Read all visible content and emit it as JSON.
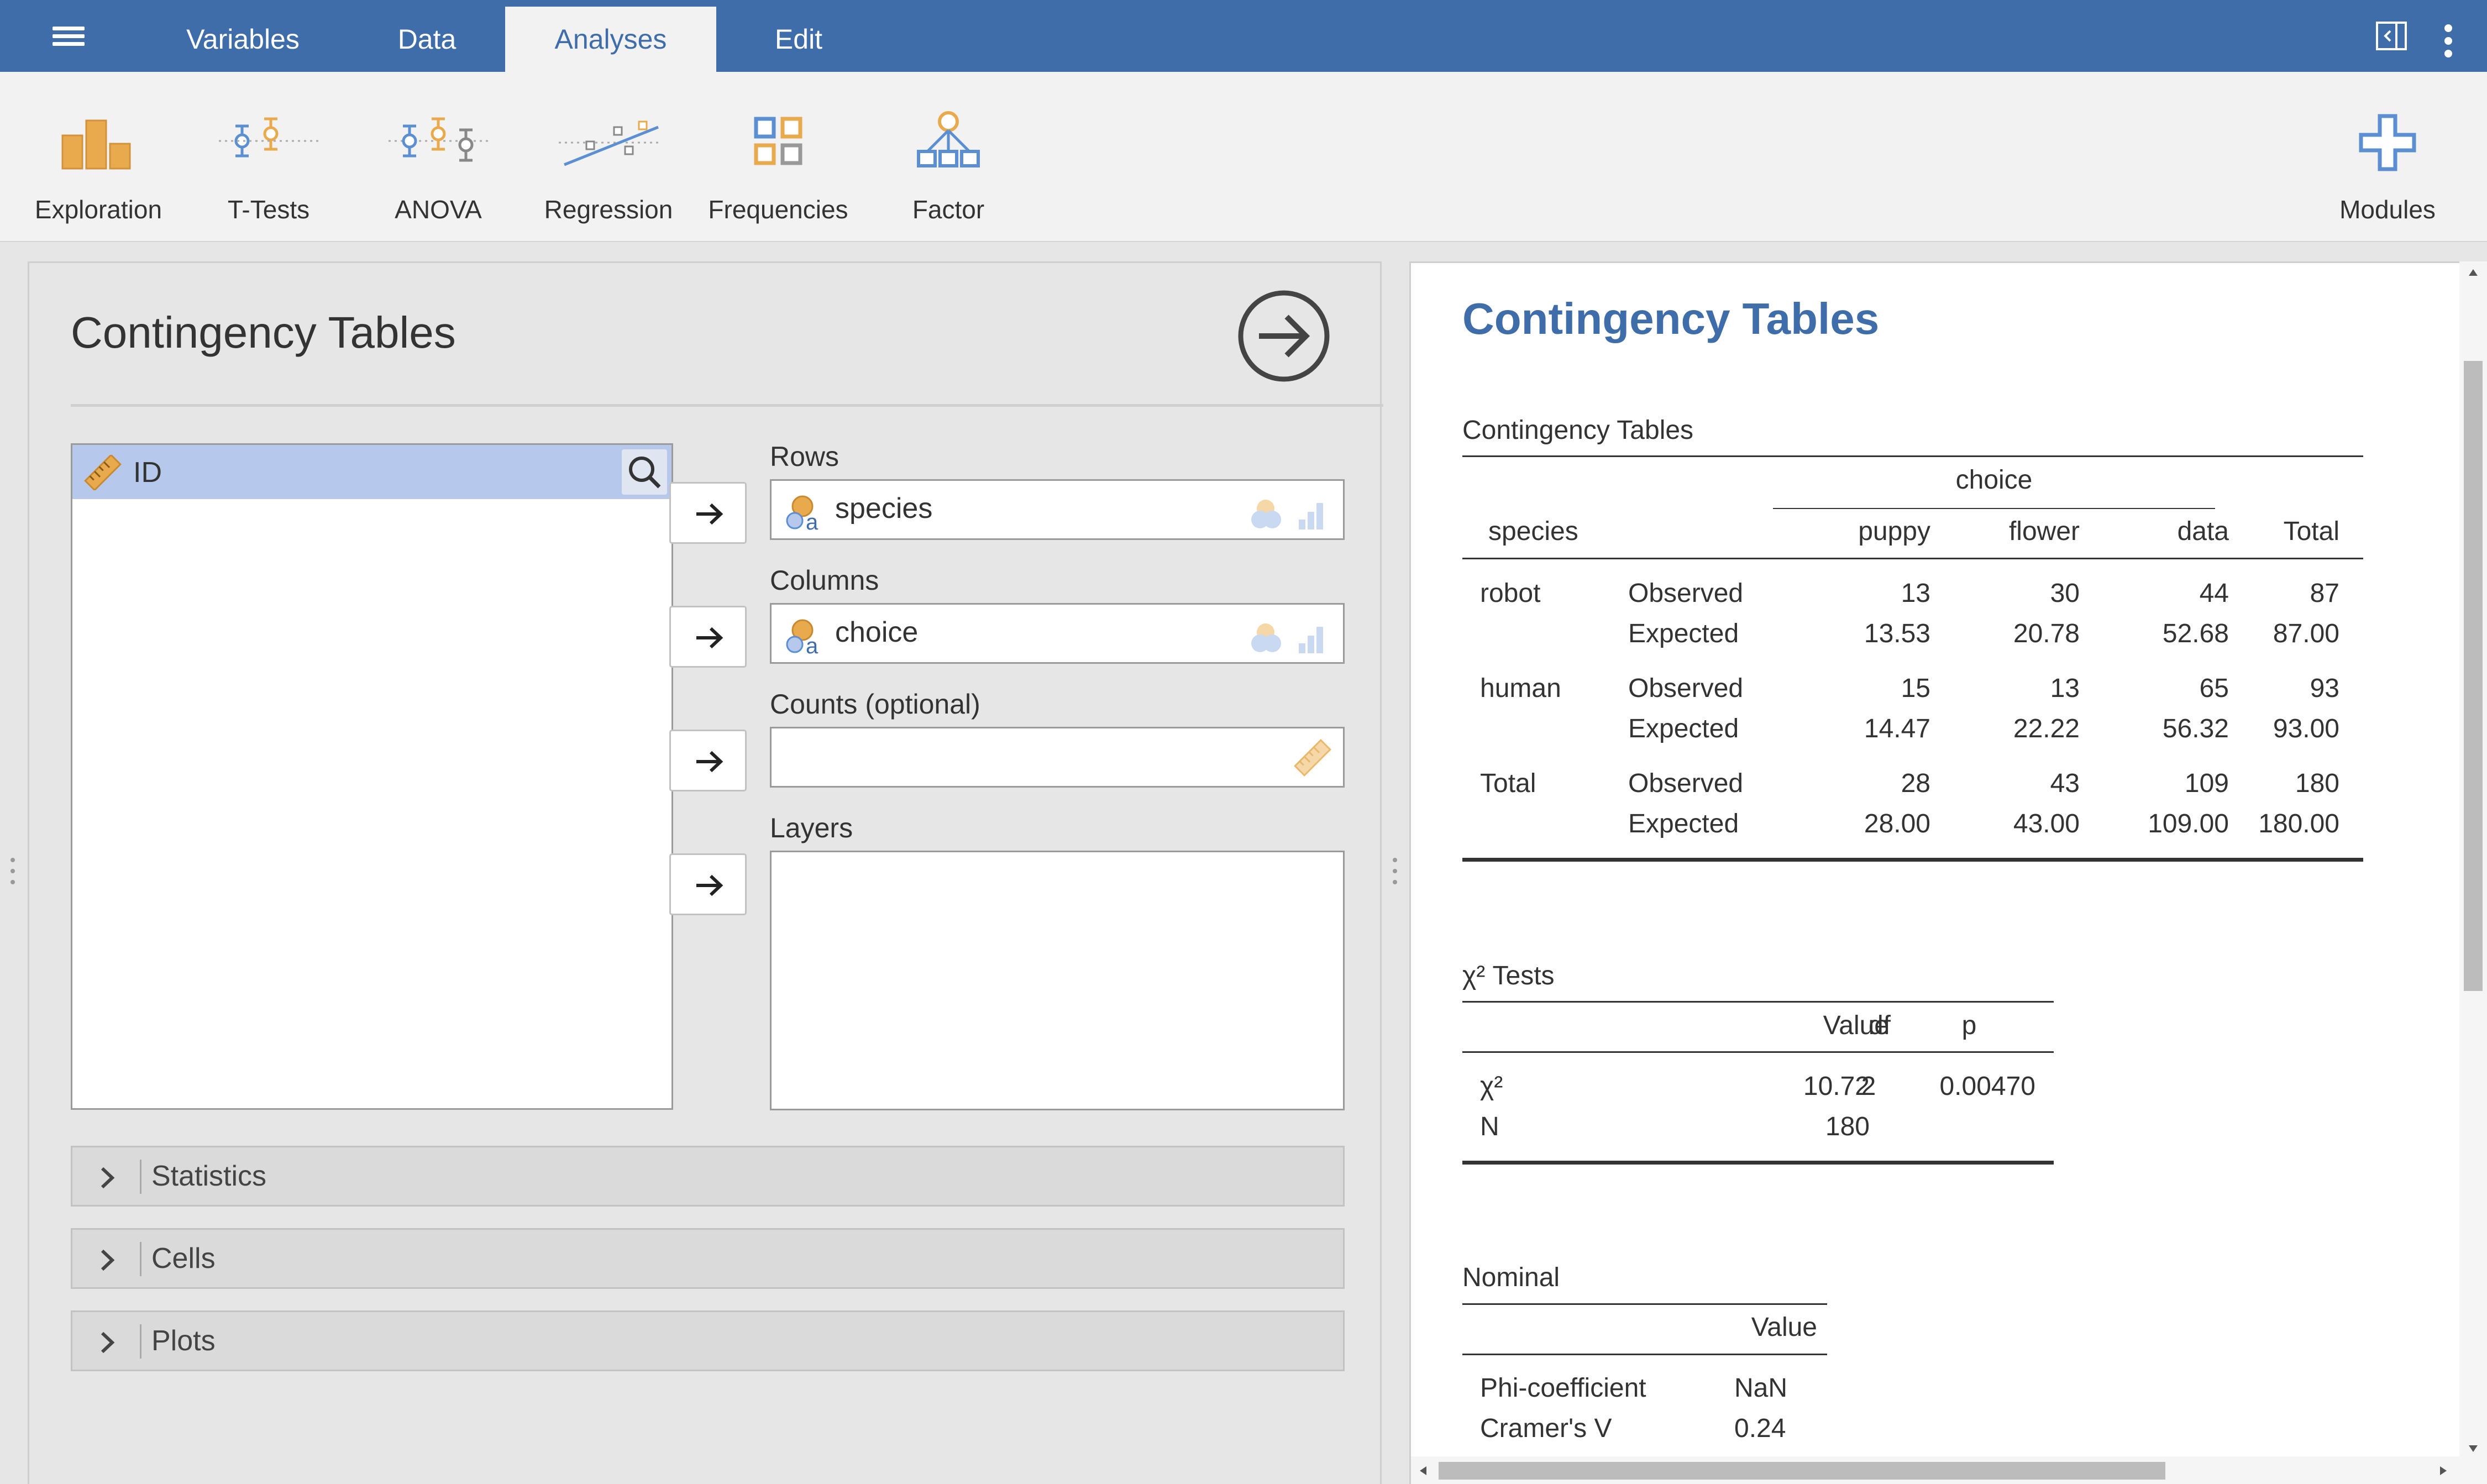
{
  "topbar": {
    "tabs": [
      {
        "label": "Variables",
        "active": false
      },
      {
        "label": "Data",
        "active": false
      },
      {
        "label": "Analyses",
        "active": true
      },
      {
        "label": "Edit",
        "active": false
      }
    ],
    "icons": [
      "hamburger-menu-icon",
      "split-view-icon",
      "kebab-menu-icon"
    ]
  },
  "ribbon": {
    "items": [
      {
        "label": "Exploration",
        "icon": "exploration-icon"
      },
      {
        "label": "T-Tests",
        "icon": "t-tests-icon"
      },
      {
        "label": "ANOVA",
        "icon": "anova-icon"
      },
      {
        "label": "Regression",
        "icon": "regression-icon"
      },
      {
        "label": "Frequencies",
        "icon": "frequencies-icon"
      },
      {
        "label": "Factor",
        "icon": "factor-icon"
      }
    ],
    "modules": {
      "label": "Modules",
      "icon": "plus-icon"
    }
  },
  "options": {
    "title": "Contingency Tables",
    "variables": [
      {
        "name": "ID",
        "type": "continuous"
      }
    ],
    "rows": {
      "label": "Rows",
      "value": "species"
    },
    "columns": {
      "label": "Columns",
      "value": "choice"
    },
    "counts": {
      "label": "Counts (optional)",
      "value": ""
    },
    "layers": {
      "label": "Layers"
    },
    "sections": [
      "Statistics",
      "Cells",
      "Plots"
    ]
  },
  "results": {
    "title": "Contingency Tables",
    "contingency": {
      "title": "Contingency Tables",
      "group_header": "choice",
      "row_var": "species",
      "columns": [
        "puppy",
        "flower",
        "data",
        "Total"
      ],
      "rows": [
        {
          "group": "robot",
          "type": "Observed",
          "values": [
            "13",
            "30",
            "44",
            "87"
          ]
        },
        {
          "group": "",
          "type": "Expected",
          "values": [
            "13.53",
            "20.78",
            "52.68",
            "87.00"
          ]
        },
        {
          "group": "human",
          "type": "Observed",
          "values": [
            "15",
            "13",
            "65",
            "93"
          ]
        },
        {
          "group": "",
          "type": "Expected",
          "values": [
            "14.47",
            "22.22",
            "56.32",
            "93.00"
          ]
        },
        {
          "group": "Total",
          "type": "Observed",
          "values": [
            "28",
            "43",
            "109",
            "180"
          ]
        },
        {
          "group": "",
          "type": "Expected",
          "values": [
            "28.00",
            "43.00",
            "109.00",
            "180.00"
          ]
        }
      ]
    },
    "chi": {
      "title": "χ² Tests",
      "columns": [
        "Value",
        "df",
        "p"
      ],
      "rows": [
        {
          "label": "χ²",
          "value": "10.72",
          "df": "2",
          "p": "0.00470"
        },
        {
          "label": "N",
          "value": "180",
          "df": "",
          "p": ""
        }
      ]
    },
    "nominal": {
      "title": "Nominal",
      "columns": [
        "Value"
      ],
      "rows": [
        {
          "label": "Phi-coefficient",
          "value": "NaN"
        },
        {
          "label": "Cramer's V",
          "value": "0.24"
        }
      ]
    }
  },
  "colors": {
    "accent": "#3e6da9",
    "ribbon_orange": "#e9a94d",
    "ribbon_blue": "#5b8fd1",
    "selection": "#b6c9ec"
  }
}
